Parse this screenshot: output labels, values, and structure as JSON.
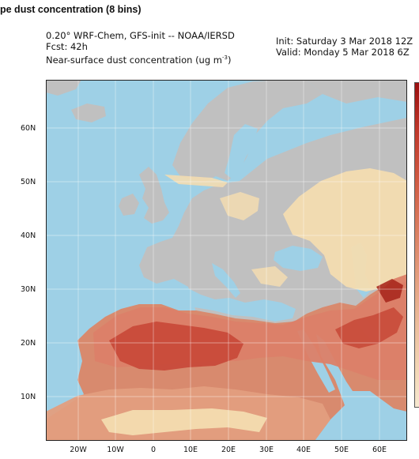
{
  "page_heading": "pe dust concentration (8 bins)",
  "header": {
    "model_line": "0.20° WRF-Chem, GFS-init -- NOAA/IERSD",
    "forecast": "Fcst: 42h",
    "variable": "Near-surface dust concentration (ug m",
    "variable_exp": "-3",
    "variable_close": ")",
    "init": "Init: Saturday 3 Mar 2018  12Z",
    "valid": "Valid: Monday 5 Mar 2018  6Z"
  },
  "axes": {
    "lat_labels": [
      "60N",
      "50N",
      "40N",
      "30N",
      "20N",
      "10N"
    ],
    "lon_labels": [
      "20W",
      "10W",
      "0",
      "10E",
      "20E",
      "30E",
      "40E",
      "50E",
      "60E"
    ]
  },
  "colors": {
    "ocean": "#9ed0e6",
    "land": "#c0c0c0",
    "dust_low": "#f3dcb0",
    "dust_mid": "#dc8068",
    "dust_high": "#c84a3a",
    "dust_max": "#a8281e"
  }
}
